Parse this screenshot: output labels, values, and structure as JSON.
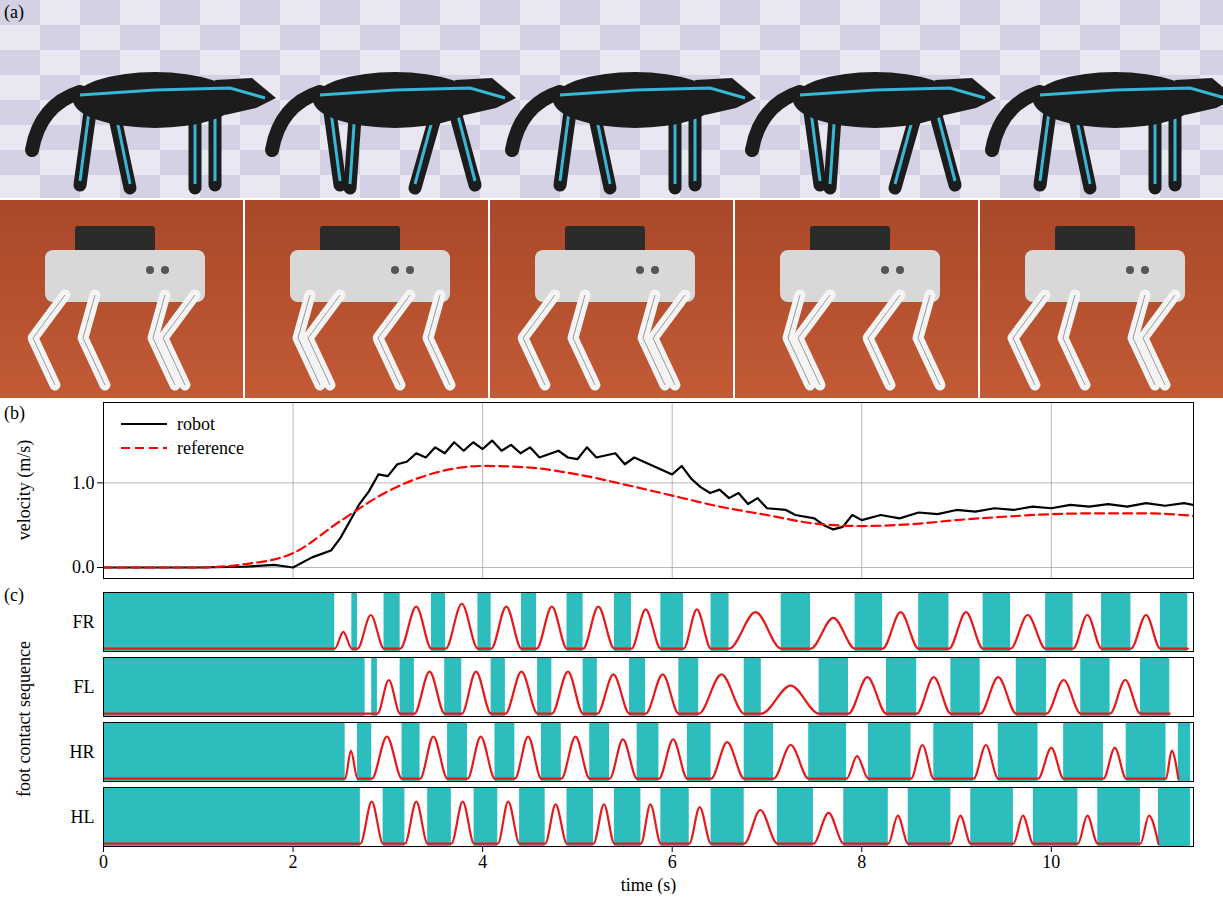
{
  "panel_a": {
    "title": "(a)"
  },
  "chart_data": [
    {
      "title": "(b)",
      "type": "line",
      "ylabel": "velocity (m/s)",
      "xlim": [
        0,
        11.5
      ],
      "xticks": [
        0,
        2,
        4,
        6,
        8,
        10
      ],
      "ylim": [
        -0.13,
        1.95
      ],
      "yticks": [
        0,
        1
      ],
      "grid": true,
      "legend": "top-left",
      "tick_labels": "y",
      "series": [
        {
          "name": "robot",
          "color": "#000000",
          "line_style": "solid",
          "x": [
            0,
            0.5,
            1,
            1.5,
            1.8,
            2.0,
            2.2,
            2.4,
            2.5,
            2.6,
            2.7,
            2.8,
            2.9,
            3.0,
            3.1,
            3.2,
            3.3,
            3.4,
            3.5,
            3.6,
            3.7,
            3.8,
            3.9,
            4.0,
            4.1,
            4.2,
            4.3,
            4.4,
            4.5,
            4.6,
            4.8,
            4.9,
            5.0,
            5.1,
            5.2,
            5.4,
            5.5,
            5.6,
            5.8,
            6.0,
            6.1,
            6.2,
            6.3,
            6.4,
            6.5,
            6.6,
            6.7,
            6.8,
            6.9,
            7.0,
            7.2,
            7.3,
            7.5,
            7.6,
            7.7,
            7.8,
            7.9,
            8.0,
            8.2,
            8.4,
            8.6,
            8.8,
            9.0,
            9.2,
            9.4,
            9.6,
            9.8,
            10.0,
            10.2,
            10.4,
            10.6,
            10.8,
            11.0,
            11.2,
            11.4,
            11.5
          ],
          "values": [
            0,
            0,
            0,
            0.01,
            0.03,
            0.0,
            0.12,
            0.2,
            0.35,
            0.55,
            0.75,
            0.9,
            1.1,
            1.08,
            1.22,
            1.25,
            1.35,
            1.3,
            1.42,
            1.35,
            1.48,
            1.38,
            1.48,
            1.4,
            1.5,
            1.38,
            1.45,
            1.35,
            1.42,
            1.3,
            1.38,
            1.3,
            1.28,
            1.42,
            1.3,
            1.35,
            1.22,
            1.3,
            1.2,
            1.1,
            1.2,
            1.05,
            0.95,
            0.88,
            0.92,
            0.82,
            0.88,
            0.75,
            0.82,
            0.7,
            0.68,
            0.62,
            0.58,
            0.5,
            0.45,
            0.48,
            0.62,
            0.56,
            0.62,
            0.58,
            0.65,
            0.63,
            0.68,
            0.66,
            0.7,
            0.68,
            0.72,
            0.7,
            0.74,
            0.72,
            0.75,
            0.72,
            0.76,
            0.73,
            0.76,
            0.74
          ]
        },
        {
          "name": "reference",
          "color": "#ff0000",
          "line_style": "dashed",
          "x": [
            0,
            1,
            1.5,
            2,
            2.5,
            3,
            3.5,
            4,
            4.5,
            5,
            5.5,
            6,
            6.5,
            7,
            7.5,
            8,
            8.5,
            9,
            9.5,
            10,
            10.5,
            11,
            11.5
          ],
          "values": [
            0,
            0,
            0.04,
            0.17,
            0.55,
            0.9,
            1.12,
            1.2,
            1.18,
            1.1,
            0.98,
            0.85,
            0.72,
            0.62,
            0.52,
            0.49,
            0.51,
            0.56,
            0.6,
            0.63,
            0.64,
            0.64,
            0.61
          ]
        }
      ]
    },
    {
      "title": "(c)",
      "type": "timeline",
      "ylabel": "foot contact sequence",
      "xlabel": "time (s)",
      "xlim": [
        0,
        11.5
      ],
      "xticks": [
        0,
        2,
        4,
        6,
        8,
        10
      ],
      "ylim": [
        -0.05,
        1
      ],
      "tick_labels": "x",
      "grid": false,
      "categories": [
        "FR",
        "FL",
        "HR",
        "HL"
      ],
      "color": "#2ebdbd",
      "series": [
        {
          "name": "FR",
          "color": "#e41a1c",
          "contacts": [
            [
              0,
              2.44
            ],
            [
              2.62,
              2.68
            ],
            [
              2.96,
              3.13
            ],
            [
              3.46,
              3.61
            ],
            [
              3.95,
              4.09
            ],
            [
              4.41,
              4.57
            ],
            [
              4.89,
              5.06
            ],
            [
              5.39,
              5.57
            ],
            [
              5.88,
              6.12
            ],
            [
              6.41,
              6.6
            ],
            [
              7.15,
              7.46
            ],
            [
              7.93,
              8.22
            ],
            [
              8.6,
              8.92
            ],
            [
              9.28,
              9.57
            ],
            [
              9.94,
              10.23
            ],
            [
              10.53,
              10.84
            ],
            [
              11.15,
              11.44
            ]
          ],
          "x": [
            0,
            2.44,
            2.53,
            2.62,
            2.68,
            2.82,
            2.96,
            3.13,
            3.3,
            3.46,
            3.61,
            3.78,
            3.95,
            4.09,
            4.25,
            4.41,
            4.57,
            4.73,
            4.89,
            5.06,
            5.22,
            5.39,
            5.57,
            5.72,
            5.88,
            6.12,
            6.26,
            6.41,
            6.6,
            6.88,
            7.15,
            7.46,
            7.7,
            7.93,
            8.22,
            8.41,
            8.6,
            8.92,
            9.1,
            9.28,
            9.57,
            9.75,
            9.94,
            10.23,
            10.38,
            10.53,
            10.84,
            11.0,
            11.15,
            11.44
          ],
          "values": [
            0,
            0,
            0.3,
            0,
            0,
            0.6,
            0,
            0,
            0.75,
            0,
            0,
            0.8,
            0,
            0,
            0.75,
            0,
            0,
            0.75,
            0,
            0,
            0.75,
            0,
            0,
            0.7,
            0,
            0,
            0.7,
            0,
            0,
            0.65,
            0,
            0,
            0.55,
            0,
            0,
            0.65,
            0,
            0,
            0.65,
            0,
            0,
            0.6,
            0,
            0,
            0.6,
            0,
            0,
            0.6,
            0,
            0
          ]
        },
        {
          "name": "FL",
          "color": "#e41a1c",
          "contacts": [
            [
              0,
              2.76
            ],
            [
              2.83,
              2.89
            ],
            [
              3.13,
              3.28
            ],
            [
              3.6,
              3.78
            ],
            [
              4.09,
              4.24
            ],
            [
              4.58,
              4.73
            ],
            [
              5.06,
              5.21
            ],
            [
              5.55,
              5.72
            ],
            [
              6.07,
              6.28
            ],
            [
              6.76,
              6.94
            ],
            [
              7.55,
              7.86
            ],
            [
              8.26,
              8.58
            ],
            [
              8.94,
              9.25
            ],
            [
              9.63,
              9.95
            ],
            [
              10.31,
              10.62
            ],
            [
              10.94,
              11.25
            ]
          ],
          "x": [
            0,
            2.76,
            2.83,
            2.89,
            3.01,
            3.13,
            3.28,
            3.44,
            3.6,
            3.78,
            3.93,
            4.09,
            4.24,
            4.41,
            4.58,
            4.73,
            4.9,
            5.06,
            5.21,
            5.38,
            5.55,
            5.72,
            5.9,
            6.07,
            6.28,
            6.52,
            6.76,
            6.94,
            7.25,
            7.55,
            7.86,
            8.06,
            8.26,
            8.58,
            8.76,
            8.94,
            9.25,
            9.44,
            9.63,
            9.95,
            10.13,
            10.31,
            10.62,
            10.78,
            10.94,
            11.25
          ],
          "values": [
            0,
            0,
            0,
            0,
            0.6,
            0,
            0,
            0.75,
            0,
            0,
            0.75,
            0,
            0,
            0.75,
            0,
            0,
            0.75,
            0,
            0,
            0.7,
            0,
            0,
            0.7,
            0,
            0,
            0.7,
            0,
            0,
            0.5,
            0,
            0,
            0.65,
            0,
            0,
            0.65,
            0,
            0,
            0.65,
            0,
            0,
            0.6,
            0,
            0,
            0.6,
            0,
            0
          ]
        },
        {
          "name": "HR",
          "color": "#e41a1c",
          "contacts": [
            [
              0,
              2.55
            ],
            [
              2.68,
              2.83
            ],
            [
              3.15,
              3.34
            ],
            [
              3.63,
              3.84
            ],
            [
              4.13,
              4.34
            ],
            [
              4.62,
              4.83
            ],
            [
              5.13,
              5.34
            ],
            [
              5.63,
              5.86
            ],
            [
              6.16,
              6.41
            ],
            [
              6.76,
              7.07
            ],
            [
              7.44,
              7.84
            ],
            [
              8.07,
              8.52
            ],
            [
              8.76,
              9.18
            ],
            [
              9.44,
              9.86
            ],
            [
              10.13,
              10.55
            ],
            [
              10.79,
              11.21
            ],
            [
              11.34,
              11.47
            ]
          ],
          "x": [
            0,
            2.55,
            2.61,
            2.68,
            2.83,
            2.99,
            3.15,
            3.34,
            3.48,
            3.63,
            3.84,
            3.98,
            4.13,
            4.34,
            4.48,
            4.62,
            4.83,
            4.98,
            5.13,
            5.34,
            5.48,
            5.63,
            5.86,
            6.01,
            6.16,
            6.41,
            6.58,
            6.76,
            7.07,
            7.25,
            7.44,
            7.84,
            7.95,
            8.07,
            8.52,
            8.64,
            8.76,
            9.18,
            9.31,
            9.44,
            9.86,
            10.0,
            10.13,
            10.55,
            10.67,
            10.79,
            11.21,
            11.27,
            11.34
          ],
          "values": [
            0,
            0,
            0.5,
            0,
            0,
            0.75,
            0,
            0,
            0.75,
            0,
            0,
            0.75,
            0,
            0,
            0.75,
            0,
            0,
            0.75,
            0,
            0,
            0.7,
            0,
            0,
            0.7,
            0,
            0,
            0.65,
            0,
            0,
            0.6,
            0,
            0,
            0.4,
            0,
            0,
            0.6,
            0,
            0,
            0.6,
            0,
            0,
            0.55,
            0,
            0,
            0.55,
            0,
            0,
            0.5,
            0
          ]
        },
        {
          "name": "HL",
          "color": "#e41a1c",
          "contacts": [
            [
              0,
              2.71
            ],
            [
              2.95,
              3.18
            ],
            [
              3.42,
              3.67
            ],
            [
              3.91,
              4.16
            ],
            [
              4.39,
              4.66
            ],
            [
              4.89,
              5.17
            ],
            [
              5.39,
              5.67
            ],
            [
              5.88,
              6.18
            ],
            [
              6.41,
              6.76
            ],
            [
              7.11,
              7.49
            ],
            [
              7.81,
              8.28
            ],
            [
              8.49,
              8.94
            ],
            [
              9.15,
              9.6
            ],
            [
              9.81,
              10.28
            ],
            [
              10.49,
              10.94
            ],
            [
              11.13,
              11.47
            ]
          ],
          "x": [
            0,
            2.71,
            2.83,
            2.95,
            3.18,
            3.3,
            3.42,
            3.67,
            3.79,
            3.91,
            4.16,
            4.27,
            4.39,
            4.66,
            4.77,
            4.89,
            5.17,
            5.28,
            5.39,
            5.67,
            5.77,
            5.88,
            6.18,
            6.29,
            6.41,
            6.76,
            6.93,
            7.11,
            7.49,
            7.65,
            7.81,
            8.28,
            8.38,
            8.49,
            8.94,
            9.04,
            9.15,
            9.6,
            9.7,
            9.81,
            10.28,
            10.38,
            10.49,
            10.94,
            11.03,
            11.13
          ],
          "values": [
            0,
            0,
            0.75,
            0,
            0,
            0.75,
            0,
            0,
            0.75,
            0,
            0,
            0.75,
            0,
            0,
            0.7,
            0,
            0,
            0.7,
            0,
            0,
            0.7,
            0,
            0,
            0.65,
            0,
            0,
            0.6,
            0,
            0,
            0.55,
            0,
            0,
            0.5,
            0,
            0,
            0.5,
            0,
            0,
            0.5,
            0,
            0,
            0.5,
            0,
            0,
            0.5,
            0
          ]
        }
      ]
    }
  ]
}
